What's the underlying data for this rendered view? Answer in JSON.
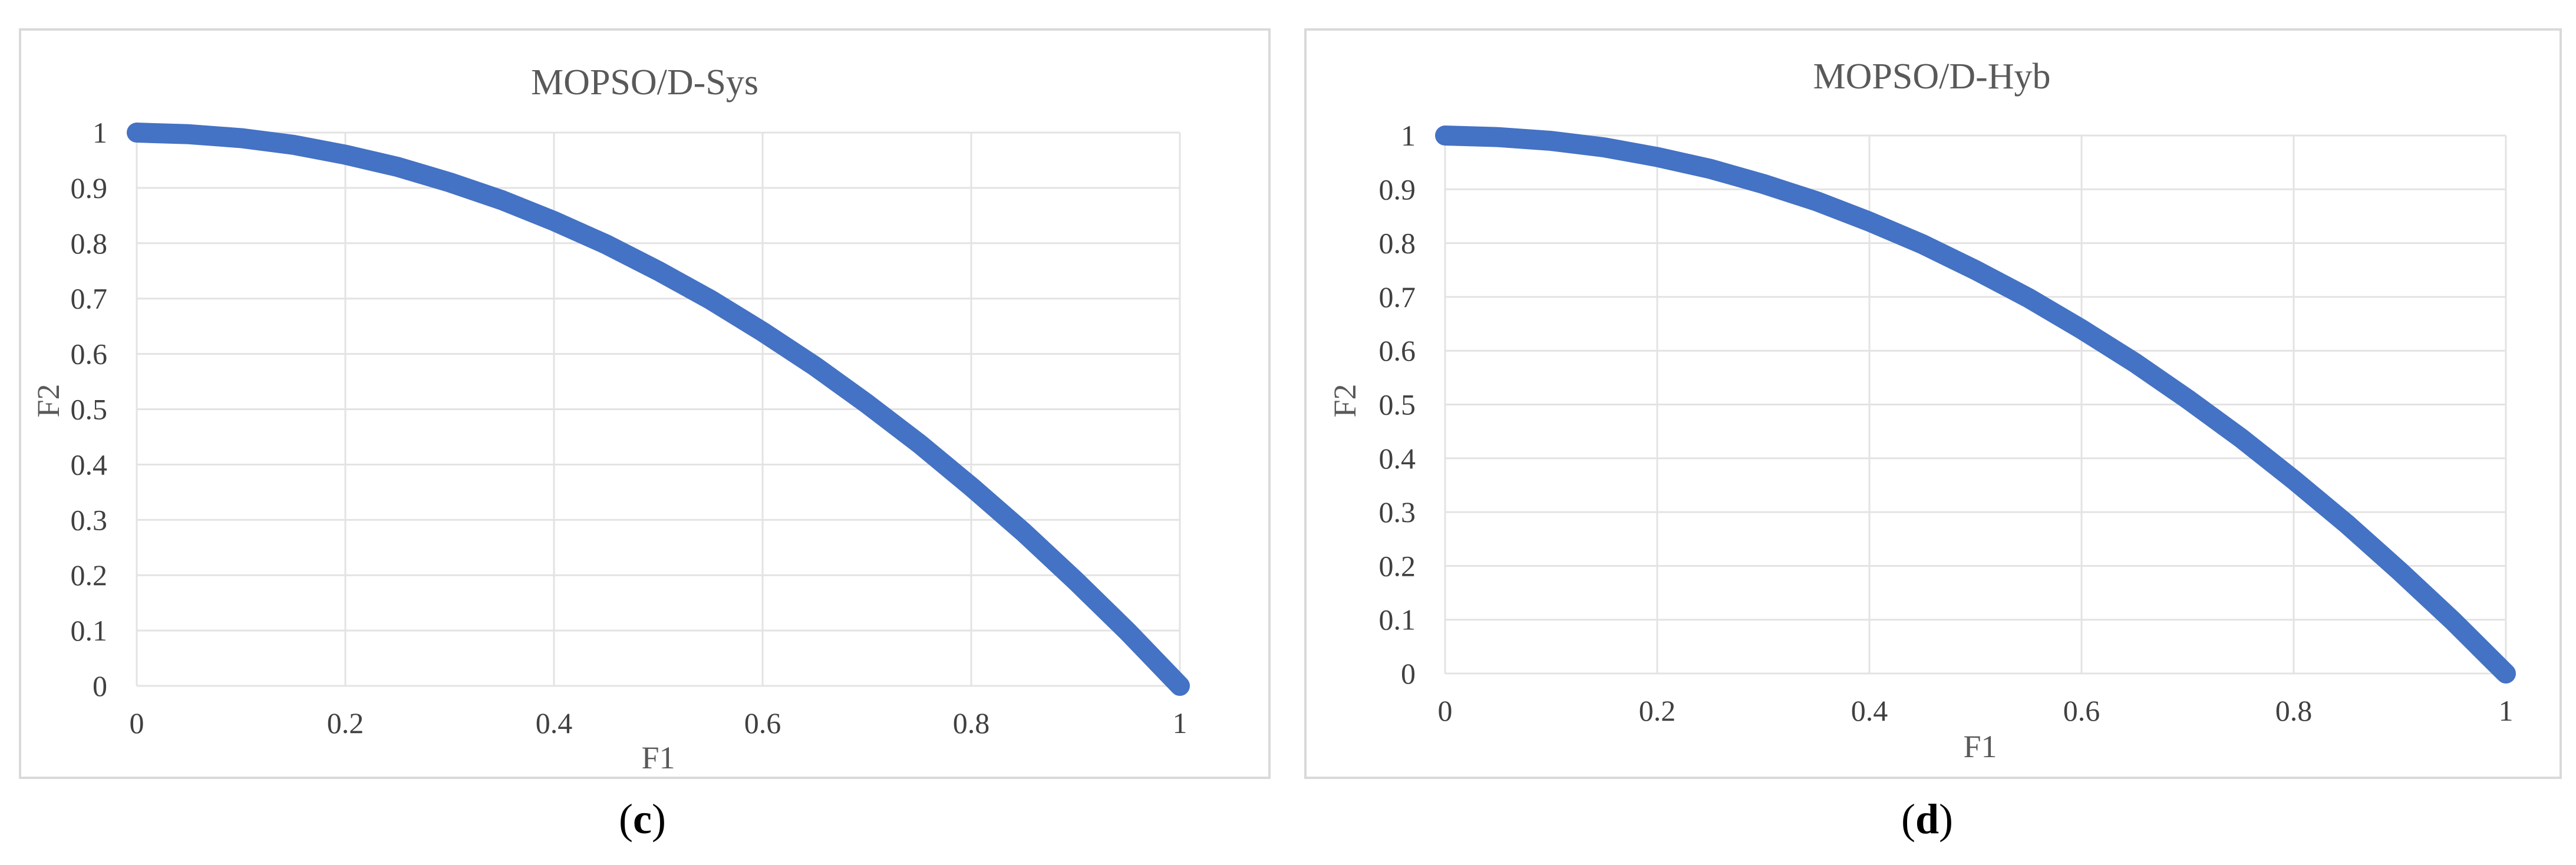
{
  "chart_data": [
    {
      "type": "line",
      "title": "MOPSO/D-Sys",
      "xlabel": "F1",
      "ylabel": "F2",
      "xlim": [
        0,
        1
      ],
      "ylim": [
        0,
        1
      ],
      "xticks": [
        0,
        0.2,
        0.4,
        0.6,
        0.8,
        1
      ],
      "xtick_labels": [
        "0",
        "0.2",
        "0.4",
        "0.6",
        "0.8",
        "1"
      ],
      "yticks": [
        0,
        0.1,
        0.2,
        0.3,
        0.4,
        0.5,
        0.6,
        0.7,
        0.8,
        0.9,
        1
      ],
      "ytick_labels": [
        "0",
        "0.1",
        "0.2",
        "0.3",
        "0.4",
        "0.5",
        "0.6",
        "0.7",
        "0.8",
        "0.9",
        "1"
      ],
      "grid": true,
      "series": [
        {
          "color": "#4472c4",
          "x": [
            0,
            0.05,
            0.1,
            0.15,
            0.2,
            0.25,
            0.3,
            0.35,
            0.4,
            0.45,
            0.5,
            0.55,
            0.6,
            0.65,
            0.7,
            0.75,
            0.8,
            0.85,
            0.9,
            0.95,
            1
          ],
          "y": [
            1,
            0.997,
            0.99,
            0.978,
            0.96,
            0.938,
            0.91,
            0.878,
            0.84,
            0.798,
            0.75,
            0.698,
            0.64,
            0.578,
            0.51,
            0.438,
            0.36,
            0.278,
            0.19,
            0.098,
            0
          ]
        }
      ],
      "caption_letter": "c"
    },
    {
      "type": "line",
      "title": "MOPSO/D-Hyb",
      "xlabel": "F1",
      "ylabel": "F2",
      "xlim": [
        0,
        1
      ],
      "ylim": [
        0,
        1
      ],
      "xticks": [
        0,
        0.2,
        0.4,
        0.6,
        0.8,
        1
      ],
      "xtick_labels": [
        "0",
        "0.2",
        "0.4",
        "0.6",
        "0.8",
        "1"
      ],
      "yticks": [
        0,
        0.1,
        0.2,
        0.3,
        0.4,
        0.5,
        0.6,
        0.7,
        0.8,
        0.9,
        1
      ],
      "ytick_labels": [
        "0",
        "0.1",
        "0.2",
        "0.3",
        "0.4",
        "0.5",
        "0.6",
        "0.7",
        "0.8",
        "0.9",
        "1"
      ],
      "grid": true,
      "series": [
        {
          "color": "#4472c4",
          "x": [
            0,
            0.05,
            0.1,
            0.15,
            0.2,
            0.25,
            0.3,
            0.35,
            0.4,
            0.45,
            0.5,
            0.55,
            0.6,
            0.65,
            0.7,
            0.75,
            0.8,
            0.85,
            0.9,
            0.95,
            1
          ],
          "y": [
            1,
            0.997,
            0.99,
            0.978,
            0.96,
            0.938,
            0.91,
            0.878,
            0.84,
            0.798,
            0.75,
            0.698,
            0.64,
            0.578,
            0.51,
            0.438,
            0.36,
            0.278,
            0.19,
            0.098,
            0
          ]
        }
      ],
      "caption_letter": "d"
    }
  ]
}
